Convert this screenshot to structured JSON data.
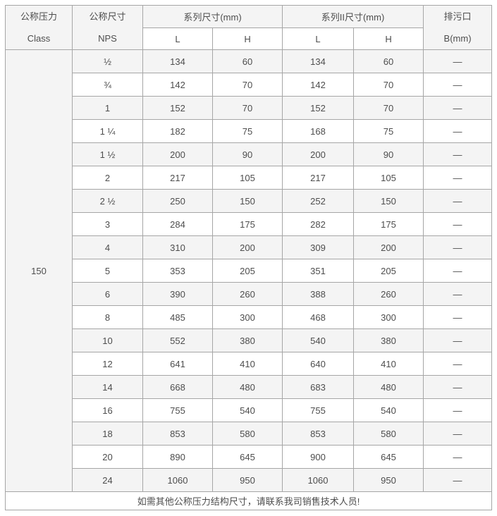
{
  "table": {
    "header": {
      "pressure": {
        "line1": "公称压力",
        "line2": "Class"
      },
      "nps": {
        "line1": "公称尺寸",
        "line2": "NPS"
      },
      "series1_group": "系列尺寸(mm)",
      "series2_group": "系列II尺寸(mm)",
      "series1_l": "L",
      "series1_h": "H",
      "series2_l": "L",
      "series2_h": "H",
      "drain": {
        "line1": "排污口",
        "line2": "B(mm)"
      }
    },
    "pressure_class": "150",
    "rows": [
      {
        "nps": "½",
        "s1_l": "134",
        "s1_h": "60",
        "s2_l": "134",
        "s2_h": "60",
        "b": "—"
      },
      {
        "nps": "¾",
        "s1_l": "142",
        "s1_h": "70",
        "s2_l": "142",
        "s2_h": "70",
        "b": "—"
      },
      {
        "nps": "1",
        "s1_l": "152",
        "s1_h": "70",
        "s2_l": "152",
        "s2_h": "70",
        "b": "—"
      },
      {
        "nps": "1 ¼",
        "s1_l": "182",
        "s1_h": "75",
        "s2_l": "168",
        "s2_h": "75",
        "b": "—"
      },
      {
        "nps": "1 ½",
        "s1_l": "200",
        "s1_h": "90",
        "s2_l": "200",
        "s2_h": "90",
        "b": "—"
      },
      {
        "nps": "2",
        "s1_l": "217",
        "s1_h": "105",
        "s2_l": "217",
        "s2_h": "105",
        "b": "—"
      },
      {
        "nps": "2 ½",
        "s1_l": "250",
        "s1_h": "150",
        "s2_l": "252",
        "s2_h": "150",
        "b": "—"
      },
      {
        "nps": "3",
        "s1_l": "284",
        "s1_h": "175",
        "s2_l": "282",
        "s2_h": "175",
        "b": "—"
      },
      {
        "nps": "4",
        "s1_l": "310",
        "s1_h": "200",
        "s2_l": "309",
        "s2_h": "200",
        "b": "—"
      },
      {
        "nps": "5",
        "s1_l": "353",
        "s1_h": "205",
        "s2_l": "351",
        "s2_h": "205",
        "b": "—"
      },
      {
        "nps": "6",
        "s1_l": "390",
        "s1_h": "260",
        "s2_l": "388",
        "s2_h": "260",
        "b": "—"
      },
      {
        "nps": "8",
        "s1_l": "485",
        "s1_h": "300",
        "s2_l": "468",
        "s2_h": "300",
        "b": "—"
      },
      {
        "nps": "10",
        "s1_l": "552",
        "s1_h": "380",
        "s2_l": "540",
        "s2_h": "380",
        "b": "—"
      },
      {
        "nps": "12",
        "s1_l": "641",
        "s1_h": "410",
        "s2_l": "640",
        "s2_h": "410",
        "b": "—"
      },
      {
        "nps": "14",
        "s1_l": "668",
        "s1_h": "480",
        "s2_l": "683",
        "s2_h": "480",
        "b": "—"
      },
      {
        "nps": "16",
        "s1_l": "755",
        "s1_h": "540",
        "s2_l": "755",
        "s2_h": "540",
        "b": "—"
      },
      {
        "nps": "18",
        "s1_l": "853",
        "s1_h": "580",
        "s2_l": "853",
        "s2_h": "580",
        "b": "—"
      },
      {
        "nps": "20",
        "s1_l": "890",
        "s1_h": "645",
        "s2_l": "900",
        "s2_h": "645",
        "b": "—"
      },
      {
        "nps": "24",
        "s1_l": "1060",
        "s1_h": "950",
        "s2_l": "1060",
        "s2_h": "950",
        "b": "—"
      }
    ],
    "footer_note": "如需其他公称压力结构尺寸，请联系我司销售技术人员!"
  },
  "colors": {
    "border": "#a6a6a6",
    "row_alt_bg": "#f4f4f4",
    "header_bg": "#f4f4f4",
    "text": "#4d4d4d"
  }
}
